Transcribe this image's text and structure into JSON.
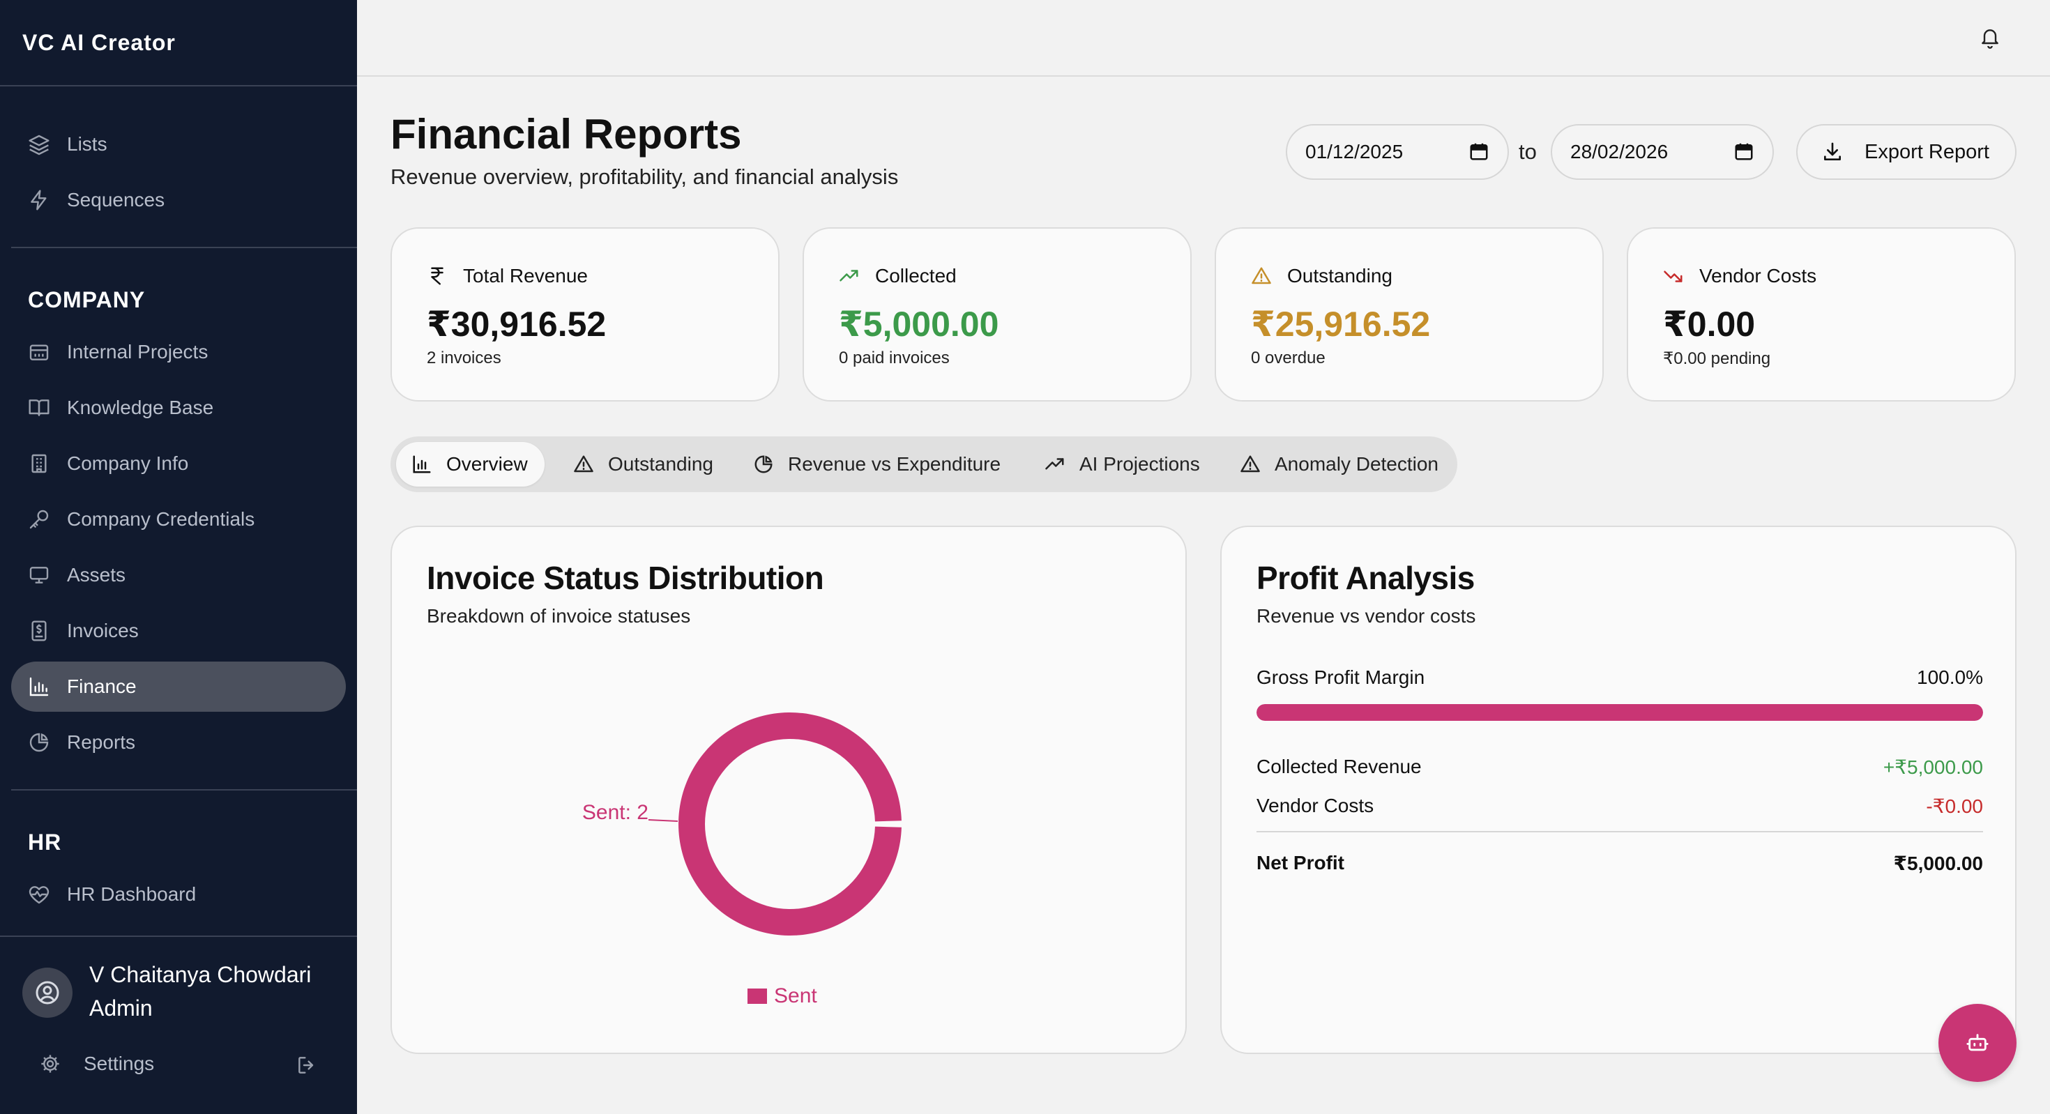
{
  "app": {
    "name": "VC AI Creator"
  },
  "sidebar": {
    "top_items": [
      {
        "label": "Lists",
        "icon": "layers-icon"
      },
      {
        "label": "Sequences",
        "icon": "lightning-icon"
      }
    ],
    "company_heading": "COMPANY",
    "company_items": [
      {
        "label": "Internal Projects",
        "icon": "calendar-project-icon"
      },
      {
        "label": "Knowledge Base",
        "icon": "book-icon"
      },
      {
        "label": "Company Info",
        "icon": "building-icon"
      },
      {
        "label": "Company Credentials",
        "icon": "key-icon"
      },
      {
        "label": "Assets",
        "icon": "monitor-icon"
      },
      {
        "label": "Invoices",
        "icon": "invoice-icon"
      },
      {
        "label": "Finance",
        "icon": "bar-chart-icon",
        "active": true
      },
      {
        "label": "Reports",
        "icon": "pie-chart-icon"
      }
    ],
    "hr_heading": "HR",
    "hr_items": [
      {
        "label": "HR Dashboard",
        "icon": "heart-pulse-icon"
      }
    ],
    "user": {
      "name": "V Chaitanya Chowdari",
      "role": "Admin"
    },
    "settings_label": "Settings"
  },
  "header": {
    "title": "Financial Reports",
    "subtitle": "Revenue overview, profitability, and financial analysis",
    "date_from": "01/12/2025",
    "to_label": "to",
    "date_to": "28/02/2026",
    "export_label": "Export Report"
  },
  "stats": [
    {
      "label": "Total Revenue",
      "value": "₹30,916.52",
      "sub": "2 invoices",
      "icon": "rupee-icon",
      "color": "#111111",
      "icon_color": "#111111"
    },
    {
      "label": "Collected",
      "value": "₹5,000.00",
      "sub": "0 paid invoices",
      "icon": "trending-up-icon",
      "color": "#3c9a4a",
      "icon_color": "#3c9a4a"
    },
    {
      "label": "Outstanding",
      "value": "₹25,916.52",
      "sub": "0 overdue",
      "icon": "warning-icon",
      "color": "#c58f2a",
      "icon_color": "#c58f2a"
    },
    {
      "label": "Vendor Costs",
      "value": "₹0.00",
      "sub": "₹0.00 pending",
      "icon": "trending-down-icon",
      "color": "#111111",
      "icon_color": "#c62b2b"
    }
  ],
  "tabs": [
    {
      "label": "Overview",
      "icon": "bar-chart-icon",
      "active": true
    },
    {
      "label": "Outstanding",
      "icon": "warning-icon"
    },
    {
      "label": "Revenue vs Expenditure",
      "icon": "pie-chart-icon"
    },
    {
      "label": "AI Projections",
      "icon": "trending-up-icon"
    },
    {
      "label": "Anomaly Detection",
      "icon": "warning-icon"
    }
  ],
  "invoice_panel": {
    "title": "Invoice Status Distribution",
    "subtitle": "Breakdown of invoice statuses",
    "slice_label": "Sent: 2",
    "legend": "Sent"
  },
  "profit_panel": {
    "title": "Profit Analysis",
    "subtitle": "Revenue vs vendor costs",
    "margin_label": "Gross Profit Margin",
    "margin_value": "100.0%",
    "margin_fraction": 1.0,
    "collected_label": "Collected Revenue",
    "collected_value": "+₹5,000.00",
    "vendor_label": "Vendor Costs",
    "vendor_value": "-₹0.00",
    "net_label": "Net Profit",
    "net_value": "₹5,000.00"
  },
  "colors": {
    "accent": "#c93574",
    "sidebar_bg": "#111a2e",
    "positive": "#3c9a4a",
    "negative": "#c62b2b",
    "warning": "#c58f2a"
  },
  "chart_data": {
    "type": "pie",
    "categories": [
      "Sent"
    ],
    "values": [
      2
    ],
    "title": "Invoice Status Distribution",
    "subtitle": "Breakdown of invoice statuses",
    "legend": "bottom"
  }
}
